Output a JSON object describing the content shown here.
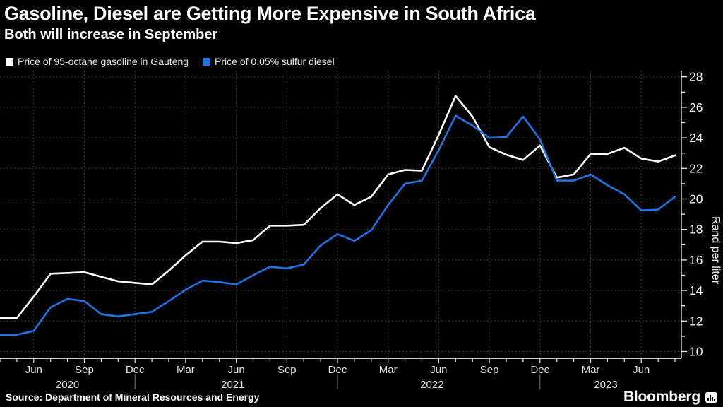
{
  "header": {
    "title": "Gasoline, Diesel are Getting More Expensive in South Africa",
    "subtitle": "Both will increase in September"
  },
  "legend": [
    {
      "label": "Price of 95-octane gasoline in Gauteng",
      "color": "#ffffff"
    },
    {
      "label": "Price of 0.05% sulfur diesel",
      "color": "#1b76e8"
    }
  ],
  "chart_data": {
    "type": "line",
    "title": "Gasoline, Diesel are Getting More Expensive in South Africa",
    "ylabel": "Rand per liter",
    "ylim": [
      10,
      28
    ],
    "y_ticks": [
      10,
      12,
      14,
      16,
      18,
      20,
      22,
      24,
      26,
      28
    ],
    "grid": true,
    "legend_position": "top-left",
    "months": [
      "Apr 2020",
      "May 2020",
      "Jun 2020",
      "Jul 2020",
      "Aug 2020",
      "Sep 2020",
      "Oct 2020",
      "Nov 2020",
      "Dec 2020",
      "Jan 2021",
      "Feb 2021",
      "Mar 2021",
      "Apr 2021",
      "May 2021",
      "Jun 2021",
      "Jul 2021",
      "Aug 2021",
      "Sep 2021",
      "Oct 2021",
      "Nov 2021",
      "Dec 2021",
      "Jan 2022",
      "Feb 2022",
      "Mar 2022",
      "Apr 2022",
      "May 2022",
      "Jun 2022",
      "Jul 2022",
      "Aug 2022",
      "Sep 2022",
      "Oct 2022",
      "Nov 2022",
      "Dec 2022",
      "Jan 2023",
      "Feb 2023",
      "Mar 2023",
      "Apr 2023",
      "May 2023",
      "Jun 2023",
      "Jul 2023",
      "Aug 2023"
    ],
    "series": [
      {
        "name": "Price of 95-octane gasoline in Gauteng",
        "color": "#ffffff",
        "values": [
          12.2,
          12.2,
          13.6,
          15.1,
          15.15,
          15.2,
          14.9,
          14.6,
          14.5,
          14.4,
          15.3,
          16.3,
          17.2,
          17.2,
          17.1,
          17.3,
          18.25,
          18.25,
          18.3,
          19.4,
          20.3,
          19.6,
          20.15,
          21.6,
          21.9,
          21.85,
          24.2,
          26.75,
          25.4,
          23.4,
          22.9,
          22.55,
          23.5,
          21.4,
          21.6,
          22.95,
          22.95,
          23.35,
          22.65,
          22.45,
          22.85
        ]
      },
      {
        "name": "Price of 0.05% sulfur diesel",
        "color": "#1b76e8",
        "values": [
          11.1,
          11.1,
          11.35,
          12.9,
          13.45,
          13.3,
          12.45,
          12.3,
          12.45,
          12.6,
          13.3,
          14.05,
          14.65,
          14.55,
          14.4,
          15.0,
          15.55,
          15.45,
          15.7,
          16.95,
          17.7,
          17.25,
          17.95,
          19.6,
          21.0,
          21.2,
          23.2,
          25.45,
          24.8,
          24.0,
          24.05,
          25.4,
          23.9,
          21.2,
          21.2,
          21.6,
          20.9,
          20.3,
          19.25,
          19.3,
          20.15
        ]
      }
    ],
    "x_tick_labels": [
      {
        "index": 2,
        "label": "Jun"
      },
      {
        "index": 5,
        "label": "Sep"
      },
      {
        "index": 8,
        "label": "Dec"
      },
      {
        "index": 11,
        "label": "Mar"
      },
      {
        "index": 14,
        "label": "Jun"
      },
      {
        "index": 17,
        "label": "Sep"
      },
      {
        "index": 20,
        "label": "Dec"
      },
      {
        "index": 23,
        "label": "Mar"
      },
      {
        "index": 26,
        "label": "Jun"
      },
      {
        "index": 29,
        "label": "Sep"
      },
      {
        "index": 32,
        "label": "Dec"
      },
      {
        "index": 35,
        "label": "Mar"
      },
      {
        "index": 38,
        "label": "Jun"
      }
    ],
    "year_labels": [
      {
        "label": "2020",
        "center_index": 4.0
      },
      {
        "label": "2021",
        "center_index": 13.8
      },
      {
        "label": "2022",
        "center_index": 25.6
      },
      {
        "label": "2023",
        "center_index": 35.9
      }
    ],
    "year_divider_indices": [
      8,
      20,
      32
    ]
  },
  "footer": {
    "source": "Source: Department of Mineral Resources and Energy",
    "brand": "Bloomberg"
  }
}
